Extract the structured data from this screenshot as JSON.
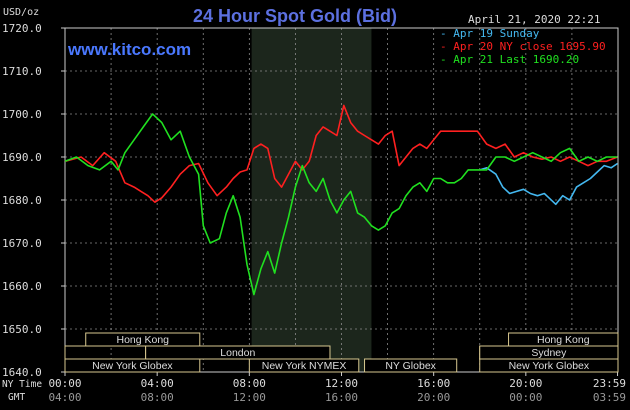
{
  "chart_data": {
    "type": "line",
    "title": "24 Hour Spot Gold (Bid)",
    "ylabel": "USD/oz",
    "watermark": "www.kitco.com",
    "timestamp": "April 21, 2020 22:21",
    "ylim": [
      1640,
      1720
    ],
    "xlim": [
      0,
      24
    ],
    "y_ticks": [
      "1720.0",
      "1710.0",
      "1700.0",
      "1690.0",
      "1680.0",
      "1670.0",
      "1660.0",
      "1650.0",
      "1640.0"
    ],
    "x_axis_label": "NY Time",
    "x_axis_label2": "GMT",
    "ny_ticks": [
      "00:00",
      "04:00",
      "08:00",
      "12:00",
      "16:00",
      "20:00",
      "23:59"
    ],
    "gmt_ticks": [
      "04:00",
      "08:00",
      "12:00",
      "16:00",
      "20:00",
      "00:00",
      "03:59"
    ],
    "grid": true,
    "legend_position": "top-right",
    "sessions": [
      {
        "label": "Hong Kong",
        "row": 1,
        "start": 0.9,
        "end": 5.85
      },
      {
        "label": "London",
        "row": 2,
        "start": 3.5,
        "end": 11.5
      },
      {
        "label": "New York Globex",
        "row": 3,
        "start": 0,
        "end": 5.85
      },
      {
        "label": "New York NYMEX",
        "row": 3,
        "start": 8.0,
        "end": 12.75
      },
      {
        "label": "NY Globex",
        "row": 3,
        "start": 13.0,
        "end": 17.0
      },
      {
        "label": "Hong Kong",
        "row": 1,
        "start": 19.25,
        "end": 24
      },
      {
        "label": "Sydney",
        "row": 2,
        "start": 18.0,
        "end": 24
      },
      {
        "label": "New York Globex",
        "row": 3,
        "start": 18.0,
        "end": 24
      }
    ],
    "session_row2_stubs": [
      [
        0,
        3.5
      ],
      [
        18.0,
        18.9
      ]
    ],
    "shaded_region": [
      8.1,
      13.3
    ],
    "series": [
      {
        "name": "Apr 19 Sunday",
        "color": "#44b8f0",
        "x": [
          18.0,
          18.3,
          18.7,
          19.0,
          19.3,
          19.6,
          19.9,
          20.2,
          20.5,
          20.8,
          21.0,
          21.3,
          21.6,
          21.9,
          22.2,
          22.5,
          22.8,
          23.1,
          23.4,
          23.7,
          23.98
        ],
        "y": [
          1687,
          1687.5,
          1686,
          1683,
          1681.5,
          1682,
          1682.5,
          1681.5,
          1681,
          1681.5,
          1680.5,
          1679,
          1681,
          1680,
          1683,
          1684,
          1685,
          1686.5,
          1688,
          1687.5,
          1688.5
        ]
      },
      {
        "name": "Apr 20 NY close 1695.90",
        "color": "#ff2020",
        "x": [
          0,
          0.7,
          1.2,
          1.7,
          2.2,
          2.6,
          3.0,
          3.3,
          3.6,
          3.9,
          4.2,
          4.6,
          5.0,
          5.4,
          5.8,
          6.2,
          6.6,
          7.0,
          7.3,
          7.6,
          7.9,
          8.2,
          8.5,
          8.8,
          9.1,
          9.4,
          9.7,
          10.0,
          10.3,
          10.6,
          10.9,
          11.2,
          11.5,
          11.8,
          12.1,
          12.4,
          12.7,
          13.0,
          13.3,
          13.6,
          13.9,
          14.2,
          14.5,
          14.8,
          15.1,
          15.4,
          15.7,
          16.0,
          16.3,
          16.7,
          17.1,
          17.5,
          17.9,
          18.3,
          18.7,
          19.1,
          19.5,
          19.9,
          20.3,
          20.7,
          21.1,
          21.5,
          21.9,
          22.3,
          22.7,
          23.1,
          23.5,
          23.98
        ],
        "y": [
          1689,
          1690,
          1688,
          1691,
          1689,
          1684,
          1683,
          1682,
          1681,
          1679.5,
          1680.5,
          1683,
          1686,
          1688,
          1688.5,
          1684,
          1681,
          1683,
          1685,
          1686.5,
          1687,
          1692,
          1693,
          1692,
          1685,
          1683,
          1686,
          1689,
          1687,
          1689,
          1695,
          1697,
          1696,
          1695,
          1702,
          1698,
          1696,
          1695,
          1694,
          1693,
          1695,
          1696,
          1688,
          1690,
          1692,
          1693,
          1692,
          1694,
          1696,
          1696,
          1696,
          1696,
          1696,
          1693,
          1692,
          1693,
          1690,
          1691,
          1690,
          1689.5,
          1690,
          1689,
          1690,
          1689,
          1688,
          1689,
          1689,
          1690
        ]
      },
      {
        "name": "Apr 21 Last 1690.20",
        "color": "#20e020",
        "x": [
          0,
          0.5,
          1.0,
          1.5,
          2.0,
          2.3,
          2.6,
          3.0,
          3.4,
          3.8,
          4.2,
          4.6,
          5.0,
          5.4,
          5.8,
          6.0,
          6.3,
          6.7,
          7.0,
          7.3,
          7.6,
          7.9,
          8.2,
          8.5,
          8.8,
          9.1,
          9.4,
          9.7,
          10.0,
          10.3,
          10.6,
          10.9,
          11.2,
          11.5,
          11.8,
          12.1,
          12.4,
          12.7,
          13.0,
          13.3,
          13.6,
          13.9,
          14.2,
          14.5,
          14.8,
          15.1,
          15.4,
          15.7,
          16.0,
          16.3,
          16.6,
          16.9,
          17.2,
          17.5,
          17.9,
          18.3,
          18.7,
          19.1,
          19.5,
          19.9,
          20.3,
          20.7,
          21.1,
          21.5,
          21.9,
          22.3,
          22.7,
          23.1,
          23.5,
          23.98
        ],
        "y": [
          1689,
          1690,
          1688,
          1687,
          1689,
          1687,
          1691,
          1694,
          1697,
          1700,
          1698,
          1694,
          1696,
          1690,
          1686,
          1674,
          1670,
          1671,
          1677,
          1681,
          1676,
          1665,
          1658,
          1664,
          1668,
          1663,
          1670,
          1676,
          1683,
          1688,
          1684,
          1682,
          1685,
          1680,
          1677,
          1680,
          1682,
          1677,
          1676,
          1674,
          1673,
          1674,
          1677,
          1678,
          1681,
          1683,
          1684,
          1682,
          1685,
          1685,
          1684,
          1684,
          1685,
          1687,
          1687,
          1687,
          1690,
          1690,
          1689,
          1690,
          1691,
          1690,
          1689,
          1691,
          1692,
          1689,
          1690,
          1689,
          1690,
          1690
        ]
      }
    ]
  }
}
